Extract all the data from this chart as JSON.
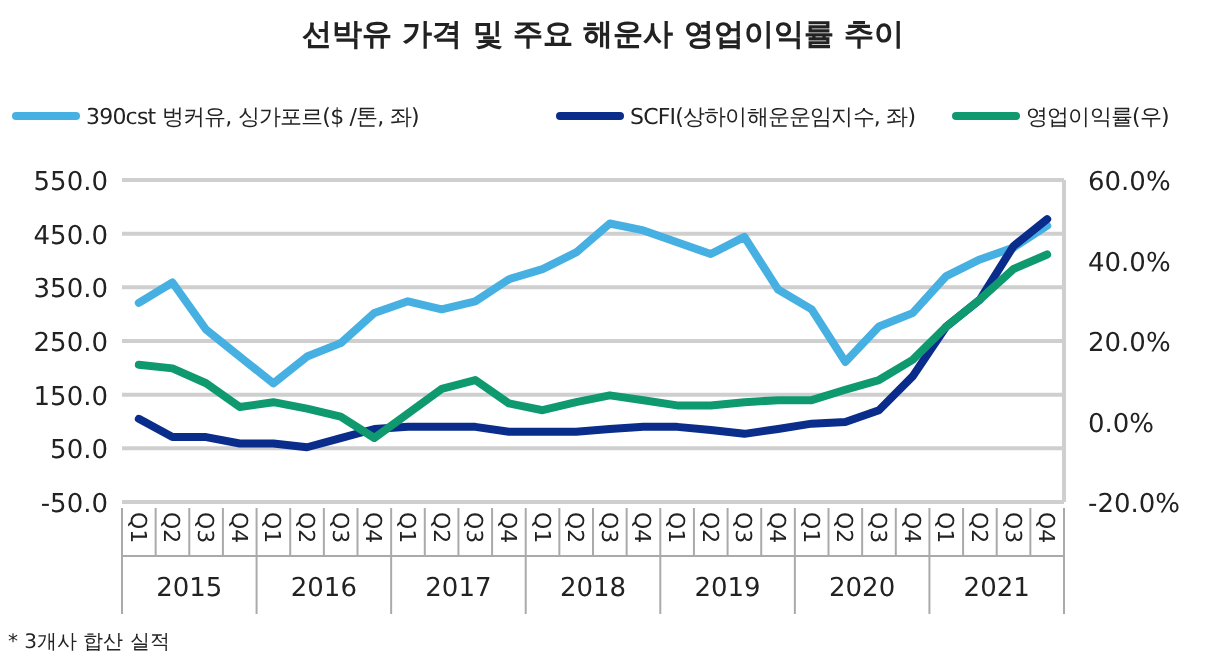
{
  "chart_data": {
    "type": "line",
    "title": "선박유 가격 및 주요 해운사 영업이익률 추이",
    "categories": [
      "Q1",
      "Q2",
      "Q3",
      "Q4",
      "Q1",
      "Q2",
      "Q3",
      "Q4",
      "Q1",
      "Q2",
      "Q3",
      "Q4",
      "Q1",
      "Q2",
      "Q3",
      "Q4",
      "Q1",
      "Q2",
      "Q3",
      "Q4",
      "Q1",
      "Q2",
      "Q3",
      "Q4",
      "Q1",
      "Q2",
      "Q3",
      "Q4"
    ],
    "series": [
      {
        "name": "390cst 벙커유, 싱가포르($ /톤, 좌)",
        "color": "#45b0e1",
        "values": [
          321,
          359,
          271,
          221,
          171,
          221,
          246,
          302,
          324,
          309,
          324,
          365,
          384,
          415,
          469,
          456,
          434,
          412,
          444,
          346,
          309,
          211,
          277,
          302,
          371,
          402,
          424,
          465
        ]
      },
      {
        "name": "SCFI(상하이해운운임지수, 좌)",
        "color": "#0a2d8c",
        "values": [
          105,
          71,
          71,
          59,
          59,
          52,
          69,
          86,
          90,
          90,
          90,
          81,
          81,
          81,
          86,
          90,
          90,
          84,
          77,
          86,
          96,
          99,
          121,
          184,
          277,
          327,
          427,
          477
        ]
      },
      {
        "name": "영업이익률(우)",
        "color": "#0e9a6e",
        "axis": "y2",
        "values": [
          14.1,
          13.2,
          9.5,
          3.6,
          4.8,
          3.2,
          1.2,
          -4.1,
          2.0,
          8.1,
          10.3,
          4.5,
          2.8,
          4.8,
          6.5,
          5.3,
          4.0,
          4.0,
          4.8,
          5.3,
          5.3,
          7.9,
          10.3,
          15.3,
          23.6,
          30.3,
          37.9,
          41.5
        ]
      }
    ],
    "ylim": [
      -50,
      550
    ],
    "yticks": [
      {
        "value": -50,
        "label": "-50.0"
      },
      {
        "value": 50,
        "label": "50.0"
      },
      {
        "value": 150,
        "label": "150.0"
      },
      {
        "value": 250,
        "label": "250.0"
      },
      {
        "value": 350,
        "label": "350.0"
      },
      {
        "value": 450,
        "label": "450.0"
      },
      {
        "value": 550,
        "label": "550.0"
      }
    ],
    "y2lim": [
      -20,
      60
    ],
    "y2ticks": [
      {
        "value": -20,
        "label": "-20.0%"
      },
      {
        "value": 0,
        "label": "0.0%"
      },
      {
        "value": 20,
        "label": "20.0%"
      },
      {
        "value": 40,
        "label": "40.0%"
      },
      {
        "value": 60,
        "label": "60.0%"
      }
    ],
    "grid": "y",
    "legend": "top",
    "marker": "none",
    "line_style": "solid",
    "annotations": [
      "2015",
      "2016",
      "2017",
      "2018",
      "2019",
      "2020",
      "2021",
      "* 3개사 합산 실적"
    ]
  }
}
